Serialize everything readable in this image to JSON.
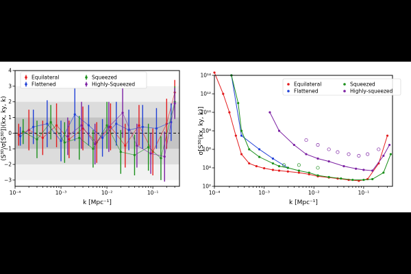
{
  "chart_data": [
    {
      "type": "scatter",
      "xscale": "log",
      "xlim": [
        0.0001,
        0.38
      ],
      "ylim": [
        -3.4,
        4
      ],
      "xlabel": "k [Mpc⁻¹]",
      "ylabel": "(S³ᴰ/σ[S³ᴰ])(kx, ky, k)",
      "yticks": [
        "−3",
        "−2",
        "−1",
        "0",
        "1",
        "2",
        "3",
        "4"
      ],
      "xticks": [
        "10⁻⁴",
        "10⁻³",
        "10⁻²",
        "10⁻¹"
      ],
      "bands": [
        {
          "name": "3-sigma",
          "y0": -3,
          "y1": 3,
          "color": "#f2f2f2"
        },
        {
          "name": "2-sigma",
          "y0": -2,
          "y1": 2,
          "color": "#dcdcdc"
        },
        {
          "name": "1-sigma",
          "y0": -1,
          "y1": 1,
          "color": "#c4c4c4"
        }
      ],
      "legend_position": "top-left",
      "series": [
        {
          "name": "Equilateral",
          "color": "#e31a1c",
          "x": [
            0.00012,
            0.0002,
            0.0004,
            0.0008,
            0.0015,
            0.003,
            0.006,
            0.012,
            0.025,
            0.05,
            0.1,
            0.2,
            0.3
          ],
          "y": [
            -0.1,
            0.2,
            -0.3,
            0.5,
            -0.4,
            0.3,
            -0.6,
            0.4,
            -0.8,
            0.5,
            -1.2,
            0.6,
            2.6
          ],
          "err": [
            0.7,
            1.3,
            1.1,
            1.4,
            1.2,
            1.4,
            1.3,
            1.5,
            1.4,
            1.3,
            1.5,
            1.6,
            0.8
          ]
        },
        {
          "name": "Flattened",
          "color": "#1f3fd6",
          "x": [
            0.00013,
            0.00025,
            0.0005,
            0.001,
            0.002,
            0.004,
            0.008,
            0.016,
            0.03,
            0.06,
            0.12,
            0.25
          ],
          "y": [
            -0.2,
            0.4,
            0.6,
            -0.5,
            1.2,
            0.5,
            -0.3,
            0.6,
            0.2,
            0.4,
            0.3,
            0.7
          ],
          "err": [
            0.6,
            1.1,
            1.5,
            1.3,
            1.7,
            1.3,
            1.2,
            1.4,
            1.3,
            1.4,
            1.3,
            1.2
          ]
        },
        {
          "name": "Squeezed",
          "color": "#1a8f1a",
          "x": [
            0.00015,
            0.0003,
            0.0006,
            0.0012,
            0.0025,
            0.005,
            0.01,
            0.02,
            0.04,
            0.08,
            0.15,
            0.3
          ],
          "y": [
            0.1,
            -0.4,
            0.7,
            -0.6,
            -0.3,
            -1.0,
            0.5,
            -1.2,
            -1.4,
            -0.9,
            -1.6,
            2.0
          ],
          "err": [
            0.8,
            1.2,
            1.1,
            1.3,
            1.4,
            1.2,
            1.5,
            1.4,
            1.3,
            1.5,
            1.4,
            1.0
          ]
        },
        {
          "name": "Highly-Squeezed",
          "color": "#7b1fa2",
          "x": [
            0.0014,
            0.0028,
            0.0055,
            0.011,
            0.022,
            0.045,
            0.09,
            0.18,
            0.3
          ],
          "y": [
            -0.2,
            0.5,
            -0.7,
            0.4,
            1.3,
            -0.8,
            -1.3,
            -1.5,
            1.9
          ],
          "err": [
            1.2,
            1.5,
            1.3,
            1.6,
            1.6,
            1.4,
            1.3,
            1.6,
            1.0
          ]
        }
      ]
    },
    {
      "type": "line",
      "xscale": "log",
      "yscale": "log",
      "xlim": [
        0.0001,
        0.38
      ],
      "ylim": [
        100,
        100000000000000.0
      ],
      "xlabel": "k [Mpc⁻¹]",
      "ylabel": "σ[S³ᴰ(kx, ky, k)]",
      "xticks": [
        "10⁻⁴",
        "10⁻³",
        "10⁻²",
        "10⁻¹"
      ],
      "yticks": [
        "10²",
        "10⁴",
        "10⁶",
        "10⁸",
        "10¹⁰",
        "10¹²",
        "10¹⁴"
      ],
      "legend_position": "top-right",
      "series": [
        {
          "name": "Equilateral",
          "color": "#e31a1c",
          "x": [
            0.0001,
            0.00015,
            0.0002,
            0.00027,
            0.00035,
            0.0005,
            0.0007,
            0.001,
            0.0015,
            0.002,
            0.003,
            0.005,
            0.008,
            0.012,
            0.02,
            0.03,
            0.05,
            0.08,
            0.12,
            0.2,
            0.3
          ],
          "y": [
            200000000000000.0,
            1000000000000.0,
            10000000000.0,
            30000000.0,
            300000.0,
            30000.0,
            15000.0,
            9000,
            6000,
            5000,
            4000,
            3000,
            2000,
            1200,
            900,
            700,
            500,
            400,
            600,
            30000.0,
            30000000.0
          ]
        },
        {
          "name": "Flattened",
          "color": "#1f3fd6",
          "x": [
            0.00022,
            0.00035,
            0.0008,
            0.0015,
            0.003
          ],
          "y": [
            100000000000000.0,
            30000000.0,
            1000000.0,
            100000.0,
            10000.0
          ]
        },
        {
          "name": "Squeezed",
          "color": "#1a8f1a",
          "x": [
            0.00022,
            0.0003,
            0.00035,
            0.0005,
            0.0008,
            0.0015,
            0.002,
            0.003,
            0.005,
            0.008,
            0.012,
            0.02,
            0.035,
            0.06,
            0.1,
            0.15,
            0.25,
            0.35
          ],
          "y": [
            100000000000000.0,
            100000000000.0,
            100000000.0,
            1000000.0,
            150000.0,
            30000.0,
            15000.0,
            10000.0,
            5000,
            3000,
            1500,
            1000,
            700,
            500,
            500,
            600,
            3000,
            300000.0
          ],
          "hollow_x": [
            0.0025,
            0.005,
            0.012
          ],
          "hollow_y": [
            20000.0,
            20000.0,
            10000.0
          ]
        },
        {
          "name": "Highly-squeezed",
          "color": "#7b1fa2",
          "x": [
            0.0013,
            0.002,
            0.004,
            0.007,
            0.012,
            0.02,
            0.04,
            0.07,
            0.1,
            0.15,
            0.25,
            0.33
          ],
          "y": [
            10000000000.0,
            100000000.0,
            3000000.0,
            300000.0,
            100000.0,
            50000.0,
            15000.0,
            8000,
            6000,
            5000,
            200000.0,
            3000000.0
          ],
          "hollow_x": [
            0.007,
            0.012,
            0.02,
            0.03,
            0.05,
            0.08,
            0.12,
            0.2
          ],
          "hollow_y": [
            10000000.0,
            3000000.0,
            1000000.0,
            500000.0,
            300000.0,
            200000.0,
            300000.0,
            1000000.0
          ]
        }
      ]
    }
  ]
}
